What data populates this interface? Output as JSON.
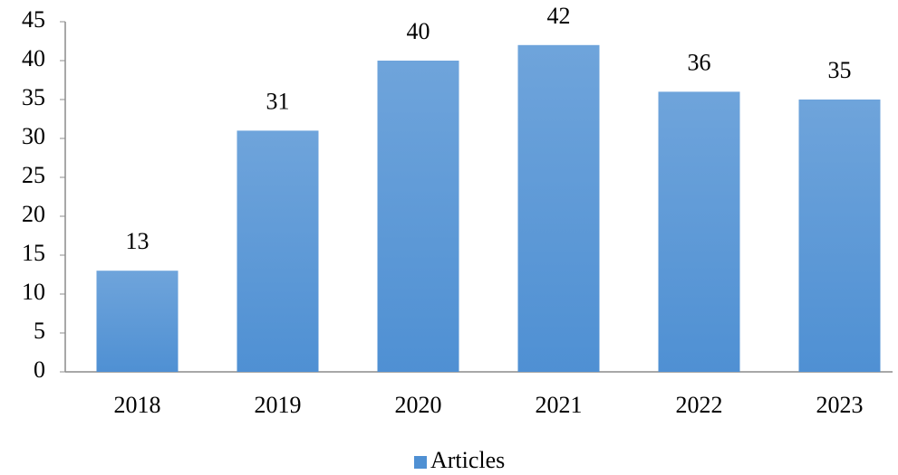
{
  "chart_data": {
    "type": "bar",
    "categories": [
      "2018",
      "2019",
      "2020",
      "2021",
      "2022",
      "2023"
    ],
    "series": [
      {
        "name": "Articles",
        "color": "#4f90d3",
        "values": [
          13,
          31,
          40,
          42,
          36,
          35
        ]
      }
    ],
    "ylim": [
      0,
      45
    ],
    "yticks": [
      0,
      5,
      10,
      15,
      20,
      25,
      30,
      35,
      40,
      45
    ],
    "grid": false,
    "legend": "bottom"
  }
}
